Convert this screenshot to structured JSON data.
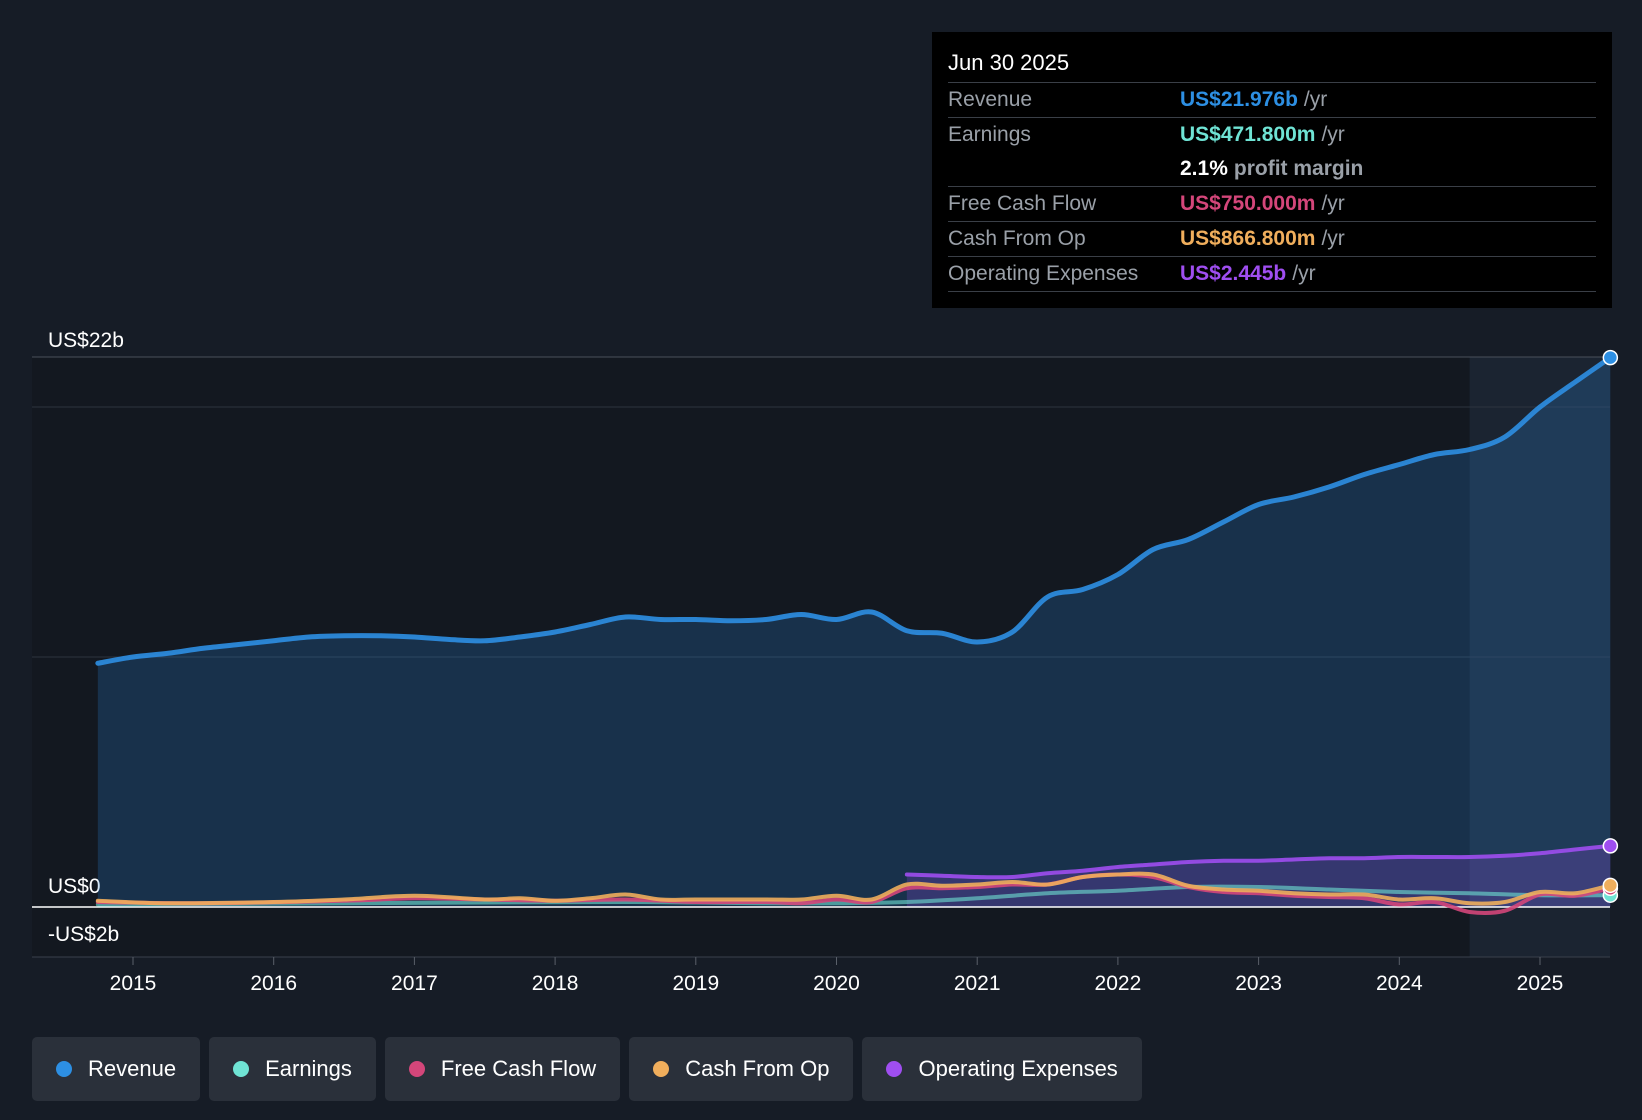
{
  "tooltip": {
    "date": "Jun 30 2025",
    "rows": [
      {
        "label": "Revenue",
        "value": "US$21.976b",
        "unit": "/yr",
        "color": "#2d8fe3"
      },
      {
        "label": "Earnings",
        "value": "US$471.800m",
        "unit": "/yr",
        "color": "#6fe3d4"
      },
      {
        "label": "",
        "value": "2.1%",
        "unit": "profit margin",
        "color": "#ffffff"
      },
      {
        "label": "Free Cash Flow",
        "value": "US$750.000m",
        "unit": "/yr",
        "color": "#d4467a"
      },
      {
        "label": "Cash From Op",
        "value": "US$866.800m",
        "unit": "/yr",
        "color": "#f0ae5c"
      },
      {
        "label": "Operating Expenses",
        "value": "US$2.445b",
        "unit": "/yr",
        "color": "#9f4ef0"
      }
    ]
  },
  "legend": [
    {
      "label": "Revenue",
      "color": "#2d8fe3"
    },
    {
      "label": "Earnings",
      "color": "#6fe3d4"
    },
    {
      "label": "Free Cash Flow",
      "color": "#d4467a"
    },
    {
      "label": "Cash From Op",
      "color": "#f0ae5c"
    },
    {
      "label": "Operating Expenses",
      "color": "#9f4ef0"
    }
  ],
  "chart_data": {
    "type": "area",
    "y_tick_labels": [
      "US$22b",
      "US$0",
      "-US$2b"
    ],
    "x_tick_labels": [
      "2015",
      "2016",
      "2017",
      "2018",
      "2019",
      "2020",
      "2021",
      "2022",
      "2023",
      "2024",
      "2025"
    ],
    "ylim": [
      -2,
      22
    ],
    "xlim": [
      2014.5,
      2025.5
    ],
    "highlight_from": 2024.5,
    "series": [
      {
        "name": "Revenue",
        "color": "#2d8fe3",
        "filled": true,
        "x": [
          2014.75,
          2015.0,
          2015.25,
          2015.5,
          2015.75,
          2016.0,
          2016.25,
          2016.5,
          2016.75,
          2017.0,
          2017.25,
          2017.5,
          2017.75,
          2018.0,
          2018.25,
          2018.5,
          2018.75,
          2019.0,
          2019.25,
          2019.5,
          2019.75,
          2020.0,
          2020.25,
          2020.5,
          2020.75,
          2021.0,
          2021.25,
          2021.5,
          2021.75,
          2022.0,
          2022.25,
          2022.5,
          2022.75,
          2023.0,
          2023.25,
          2023.5,
          2023.75,
          2024.0,
          2024.25,
          2024.5,
          2024.75,
          2025.0,
          2025.25,
          2025.5
        ],
        "values": [
          9.75,
          10.0,
          10.15,
          10.35,
          10.5,
          10.65,
          10.8,
          10.85,
          10.85,
          10.8,
          10.7,
          10.65,
          10.8,
          11.0,
          11.3,
          11.6,
          11.5,
          11.5,
          11.45,
          11.5,
          11.7,
          11.5,
          11.8,
          11.05,
          10.95,
          10.6,
          11.0,
          12.4,
          12.7,
          13.3,
          14.3,
          14.7,
          15.4,
          16.1,
          16.4,
          16.8,
          17.3,
          17.7,
          18.1,
          18.3,
          18.8,
          20.0,
          21.0,
          21.976
        ]
      },
      {
        "name": "Earnings",
        "color": "#6fe3d4",
        "filled": false,
        "x": [
          2014.75,
          2015.5,
          2016.5,
          2017.5,
          2018.5,
          2019.0,
          2019.5,
          2020.0,
          2020.5,
          2021.0,
          2021.5,
          2022.0,
          2022.5,
          2023.0,
          2023.5,
          2024.0,
          2024.5,
          2025.0,
          2025.5
        ],
        "values": [
          0.1,
          0.12,
          0.15,
          0.18,
          0.2,
          0.18,
          0.15,
          0.15,
          0.2,
          0.35,
          0.55,
          0.65,
          0.8,
          0.8,
          0.7,
          0.6,
          0.55,
          0.47,
          0.4718
        ]
      },
      {
        "name": "Free Cash Flow",
        "color": "#d4467a",
        "filled": false,
        "x": [
          2014.75,
          2015.5,
          2016.5,
          2017.0,
          2017.5,
          2018.0,
          2018.5,
          2019.0,
          2019.5,
          2019.75,
          2020.0,
          2020.25,
          2020.5,
          2020.75,
          2021.0,
          2021.25,
          2021.5,
          2021.75,
          2022.0,
          2022.25,
          2022.5,
          2022.75,
          2023.0,
          2023.25,
          2023.5,
          2023.75,
          2024.0,
          2024.25,
          2024.5,
          2024.75,
          2025.0,
          2025.25,
          2025.5
        ],
        "values": [
          0.2,
          0.15,
          0.25,
          0.35,
          0.3,
          0.25,
          0.3,
          0.2,
          0.2,
          0.15,
          0.3,
          0.2,
          0.75,
          0.75,
          0.8,
          0.9,
          0.9,
          1.2,
          1.3,
          1.2,
          0.8,
          0.6,
          0.55,
          0.45,
          0.4,
          0.35,
          0.1,
          0.2,
          -0.2,
          -0.15,
          0.5,
          0.45,
          0.75
        ]
      },
      {
        "name": "Cash From Op",
        "color": "#f0ae5c",
        "filled": false,
        "x": [
          2014.75,
          2015.25,
          2016.0,
          2016.5,
          2017.0,
          2017.5,
          2017.75,
          2018.0,
          2018.25,
          2018.5,
          2018.75,
          2019.0,
          2019.5,
          2019.75,
          2020.0,
          2020.25,
          2020.5,
          2020.75,
          2021.0,
          2021.25,
          2021.5,
          2021.75,
          2022.0,
          2022.25,
          2022.5,
          2022.75,
          2023.0,
          2023.25,
          2023.5,
          2023.75,
          2024.0,
          2024.25,
          2024.5,
          2024.75,
          2025.0,
          2025.25,
          2025.5
        ],
        "values": [
          0.25,
          0.15,
          0.2,
          0.3,
          0.45,
          0.3,
          0.35,
          0.25,
          0.35,
          0.5,
          0.3,
          0.3,
          0.3,
          0.3,
          0.45,
          0.3,
          0.9,
          0.85,
          0.9,
          1.0,
          0.9,
          1.2,
          1.3,
          1.3,
          0.85,
          0.7,
          0.65,
          0.55,
          0.5,
          0.5,
          0.3,
          0.35,
          0.15,
          0.2,
          0.6,
          0.55,
          0.8668
        ]
      },
      {
        "name": "Operating Expenses",
        "color": "#9f4ef0",
        "filled": true,
        "x": [
          2020.5,
          2020.75,
          2021.0,
          2021.25,
          2021.5,
          2021.75,
          2022.0,
          2022.25,
          2022.5,
          2022.75,
          2023.0,
          2023.25,
          2023.5,
          2023.75,
          2024.0,
          2024.25,
          2024.5,
          2024.75,
          2025.0,
          2025.25,
          2025.5
        ],
        "values": [
          1.3,
          1.25,
          1.2,
          1.2,
          1.35,
          1.45,
          1.6,
          1.7,
          1.8,
          1.85,
          1.85,
          1.9,
          1.95,
          1.95,
          2.0,
          2.0,
          2.0,
          2.05,
          2.15,
          2.3,
          2.445
        ]
      }
    ]
  }
}
